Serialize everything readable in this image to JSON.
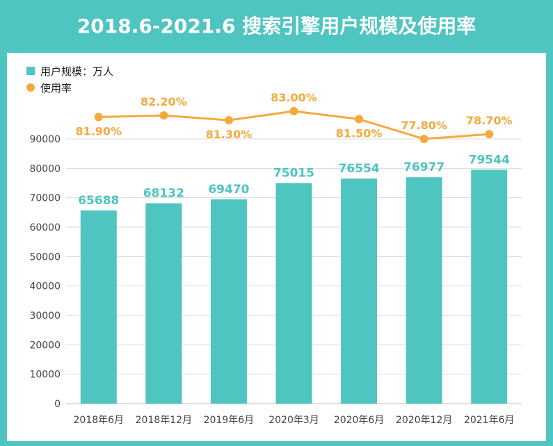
{
  "title": "2018.6-2021.6 搜索引擎用户规模及使用率",
  "legend": {
    "bar_label": "用户规模：万人",
    "line_label": "使用率"
  },
  "colors": {
    "frame": "#4fc5c1",
    "bar": "#4fc5c1",
    "line": "#f5a93c",
    "grid": "#d9d9d9"
  },
  "chart_data": {
    "type": "bar",
    "categories": [
      "2018年6月",
      "2018年12月",
      "2019年6月",
      "2020年3月",
      "2020年6月",
      "2020年12月",
      "2021年6月"
    ],
    "series": [
      {
        "name": "用户规模：万人",
        "type": "bar",
        "values": [
          65688,
          68132,
          69470,
          75015,
          76554,
          76977,
          79544
        ],
        "labels": [
          "65688",
          "68132",
          "69470",
          "75015",
          "76554",
          "76977",
          "79544"
        ]
      },
      {
        "name": "使用率",
        "type": "line",
        "values": [
          81.9,
          82.2,
          81.3,
          83.0,
          81.5,
          77.8,
          78.7
        ],
        "labels": [
          "81.90%",
          "82.20%",
          "81.30%",
          "83.00%",
          "81.50%",
          "77.80%",
          "78.70%"
        ]
      }
    ],
    "yticks": [
      "0",
      "10000",
      "20000",
      "30000",
      "40000",
      "50000",
      "60000",
      "70000",
      "80000",
      "90000"
    ],
    "ylim": [
      0,
      90000
    ],
    "grid": true,
    "legend_position": "top-left"
  }
}
